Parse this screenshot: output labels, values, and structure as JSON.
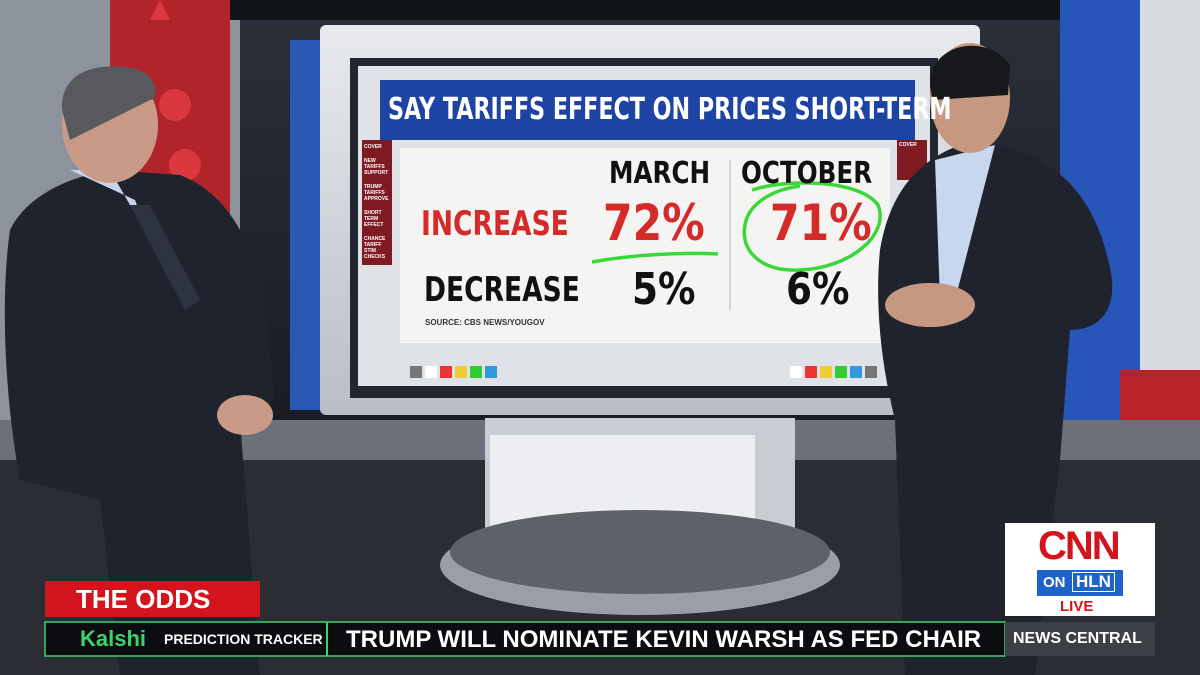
{
  "screen": {
    "title": "SAY TARIFFS EFFECT ON PRICES SHORT-TERM",
    "menu_left": [
      "COVER",
      "NEW TARIFFS SUPPORT",
      "TRUMP TARIFFS APPROVE",
      "SHORT TERM EFFECT",
      "CHANCE TARIFF STIM CHECKS"
    ],
    "menu_right": [
      "COVER"
    ],
    "table": {
      "columns": [
        "MARCH",
        "OCTOBER"
      ],
      "rows": [
        [
          "INCREASE",
          "72%",
          "71%"
        ],
        [
          "DECREASE",
          "5%",
          "6%"
        ]
      ]
    },
    "source": "SOURCE: CBS NEWS/YOUGOV"
  },
  "lower_third": {
    "label": "THE ODDS",
    "sponsor": "Kalshi",
    "tracker": "PREDICTION TRACKER",
    "headline": "TRUMP WILL NOMINATE KEVIN WARSH AS FED CHAIR"
  },
  "bug": {
    "network": "CNN",
    "on": "ON",
    "partner": "HLN",
    "live": "LIVE",
    "show": "NEWS CENTRAL"
  }
}
